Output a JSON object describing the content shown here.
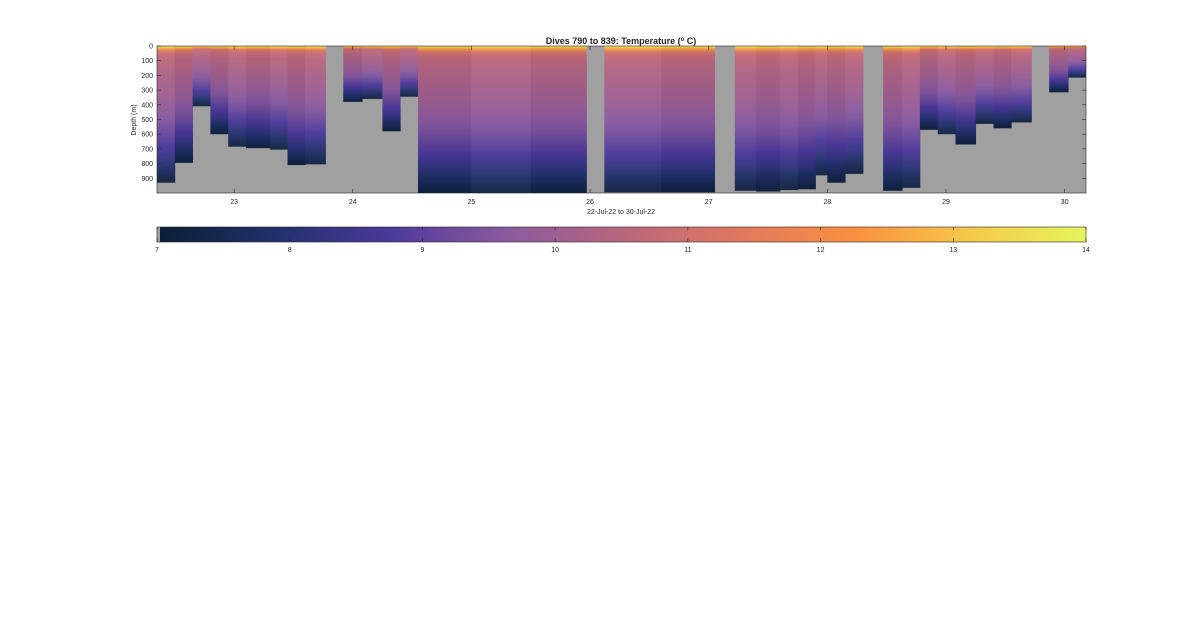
{
  "chart_data": [
    {
      "type": "heatmap",
      "title": "Dives 790 to 839: Temperature (",
      "title_superscript": "o",
      "title_suffix": " C)",
      "xlabel": "22-Jul-22 to 30-Jul-22",
      "ylabel": "Depth (m)",
      "xlim": [
        22.35,
        30.18
      ],
      "ylim": [
        0,
        1000
      ],
      "y_reversed": true,
      "x_ticks": [
        23,
        24,
        25,
        26,
        27,
        28,
        29,
        30
      ],
      "x_tick_labels": [
        "23",
        "24",
        "25",
        "26",
        "27",
        "28",
        "29",
        "30"
      ],
      "y_ticks": [
        0,
        100,
        200,
        300,
        400,
        500,
        600,
        700,
        800,
        900
      ],
      "y_tick_labels": [
        "0",
        "100",
        "200",
        "300",
        "400",
        "500",
        "600",
        "700",
        "800",
        "900"
      ],
      "no_data_color": "#a0a0a0",
      "profiles": [
        {
          "start": 22.35,
          "end": 22.5,
          "max_depth": 930
        },
        {
          "start": 22.5,
          "end": 22.65,
          "max_depth": 795
        },
        {
          "start": 22.65,
          "end": 22.8,
          "max_depth": 410
        },
        {
          "start": 22.8,
          "end": 22.95,
          "max_depth": 600
        },
        {
          "start": 22.95,
          "end": 23.1,
          "max_depth": 685
        },
        {
          "start": 23.1,
          "end": 23.3,
          "max_depth": 695
        },
        {
          "start": 23.3,
          "end": 23.45,
          "max_depth": 705
        },
        {
          "start": 23.45,
          "end": 23.6,
          "max_depth": 810
        },
        {
          "start": 23.6,
          "end": 23.77,
          "max_depth": 805
        },
        {
          "start": 23.92,
          "end": 24.08,
          "max_depth": 380
        },
        {
          "start": 24.08,
          "end": 24.25,
          "max_depth": 360
        },
        {
          "start": 24.25,
          "end": 24.4,
          "max_depth": 580
        },
        {
          "start": 24.4,
          "end": 24.55,
          "max_depth": 345
        },
        {
          "start": 24.55,
          "end": 25.0,
          "max_depth": 1000
        },
        {
          "start": 25.0,
          "end": 25.5,
          "max_depth": 1000
        },
        {
          "start": 25.5,
          "end": 25.97,
          "max_depth": 1000
        },
        {
          "start": 26.12,
          "end": 26.6,
          "max_depth": 995
        },
        {
          "start": 26.6,
          "end": 27.05,
          "max_depth": 995
        },
        {
          "start": 27.22,
          "end": 27.4,
          "max_depth": 985
        },
        {
          "start": 27.4,
          "end": 27.6,
          "max_depth": 990
        },
        {
          "start": 27.6,
          "end": 27.75,
          "max_depth": 980
        },
        {
          "start": 27.75,
          "end": 27.9,
          "max_depth": 975
        },
        {
          "start": 27.9,
          "end": 28.0,
          "max_depth": 880
        },
        {
          "start": 28.0,
          "end": 28.15,
          "max_depth": 930
        },
        {
          "start": 28.15,
          "end": 28.3,
          "max_depth": 870
        },
        {
          "start": 28.47,
          "end": 28.63,
          "max_depth": 985
        },
        {
          "start": 28.63,
          "end": 28.78,
          "max_depth": 965
        },
        {
          "start": 28.78,
          "end": 28.93,
          "max_depth": 570
        },
        {
          "start": 28.93,
          "end": 29.08,
          "max_depth": 600
        },
        {
          "start": 29.08,
          "end": 29.25,
          "max_depth": 670
        },
        {
          "start": 29.25,
          "end": 29.4,
          "max_depth": 530
        },
        {
          "start": 29.4,
          "end": 29.55,
          "max_depth": 560
        },
        {
          "start": 29.55,
          "end": 29.72,
          "max_depth": 520
        },
        {
          "start": 29.87,
          "end": 30.03,
          "max_depth": 315
        },
        {
          "start": 30.03,
          "end": 30.18,
          "max_depth": 215
        }
      ],
      "temperature_profile": [
        {
          "depth": 0,
          "temp": 13.9
        },
        {
          "depth": 8,
          "temp": 13.5
        },
        {
          "depth": 18,
          "temp": 12.6
        },
        {
          "depth": 35,
          "temp": 11.3
        },
        {
          "depth": 60,
          "temp": 10.8
        },
        {
          "depth": 120,
          "temp": 10.5
        },
        {
          "depth": 250,
          "temp": 10.2
        },
        {
          "depth": 400,
          "temp": 9.9
        },
        {
          "depth": 550,
          "temp": 9.5
        },
        {
          "depth": 700,
          "temp": 8.9
        },
        {
          "depth": 800,
          "temp": 8.4
        },
        {
          "depth": 880,
          "temp": 7.9
        },
        {
          "depth": 940,
          "temp": 7.5
        },
        {
          "depth": 1000,
          "temp": 7.2
        }
      ],
      "colorbar": {
        "min": 7,
        "max": 14,
        "ticks": [
          7,
          8,
          9,
          10,
          11,
          12,
          13,
          14
        ],
        "tick_labels": [
          "7",
          "8",
          "9",
          "10",
          "11",
          "12",
          "13",
          "14"
        ],
        "colormap": [
          "#0b1e33",
          "#21306b",
          "#4b399a",
          "#8a5a9e",
          "#b8667e",
          "#e07860",
          "#f99040",
          "#f6c84a",
          "#e5f55c"
        ]
      }
    }
  ]
}
